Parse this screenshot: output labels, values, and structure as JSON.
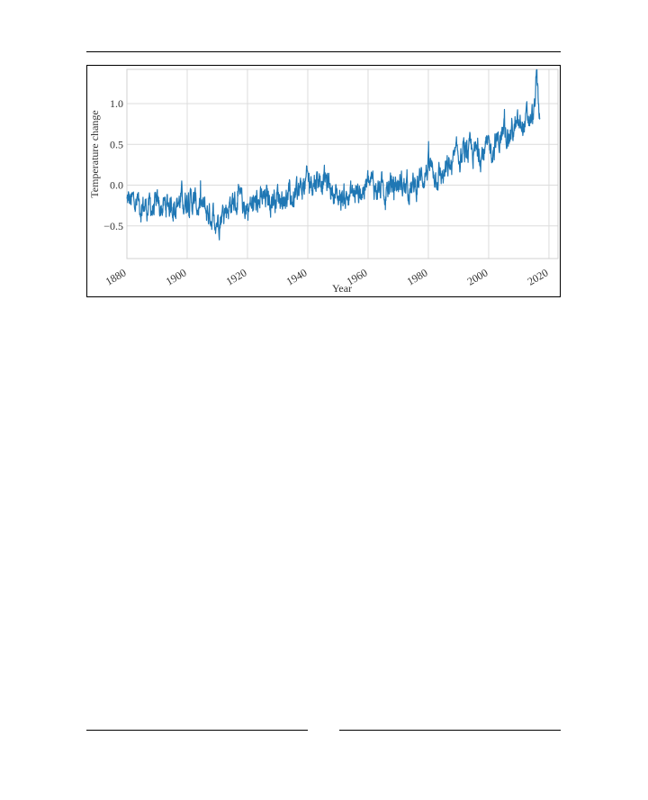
{
  "chart_data": {
    "type": "line",
    "title": "",
    "xlabel": "Year",
    "ylabel": "Temperature change",
    "xlim": [
      1880,
      2023
    ],
    "ylim": [
      -0.9,
      1.42
    ],
    "x_ticks": [
      1880,
      1900,
      1920,
      1940,
      1960,
      1980,
      2000,
      2020
    ],
    "y_ticks": [
      1.0,
      0.5,
      0.0,
      -0.5
    ],
    "y_tick_labels": [
      "1.0",
      "0.5",
      "0.0",
      "−0.5"
    ],
    "grid": true,
    "line_color": "#1f77b4",
    "series": [
      {
        "x": [
          1880,
          1885,
          1890,
          1895,
          1900,
          1905,
          1910,
          1915,
          1920,
          1925,
          1930,
          1935,
          1940,
          1945,
          1950,
          1955,
          1960,
          1965,
          1970,
          1975,
          1980,
          1985,
          1990,
          1995,
          2000,
          2005,
          2010,
          2015,
          2016,
          2017
        ],
        "y": [
          -0.2,
          -0.25,
          -0.3,
          -0.22,
          -0.15,
          -0.3,
          -0.4,
          -0.2,
          -0.27,
          -0.2,
          -0.12,
          -0.18,
          0.05,
          0.1,
          -0.15,
          -0.12,
          0.0,
          -0.05,
          0.02,
          -0.05,
          0.22,
          0.1,
          0.35,
          0.38,
          0.42,
          0.62,
          0.7,
          0.85,
          1.32,
          0.82
        ]
      }
    ]
  }
}
